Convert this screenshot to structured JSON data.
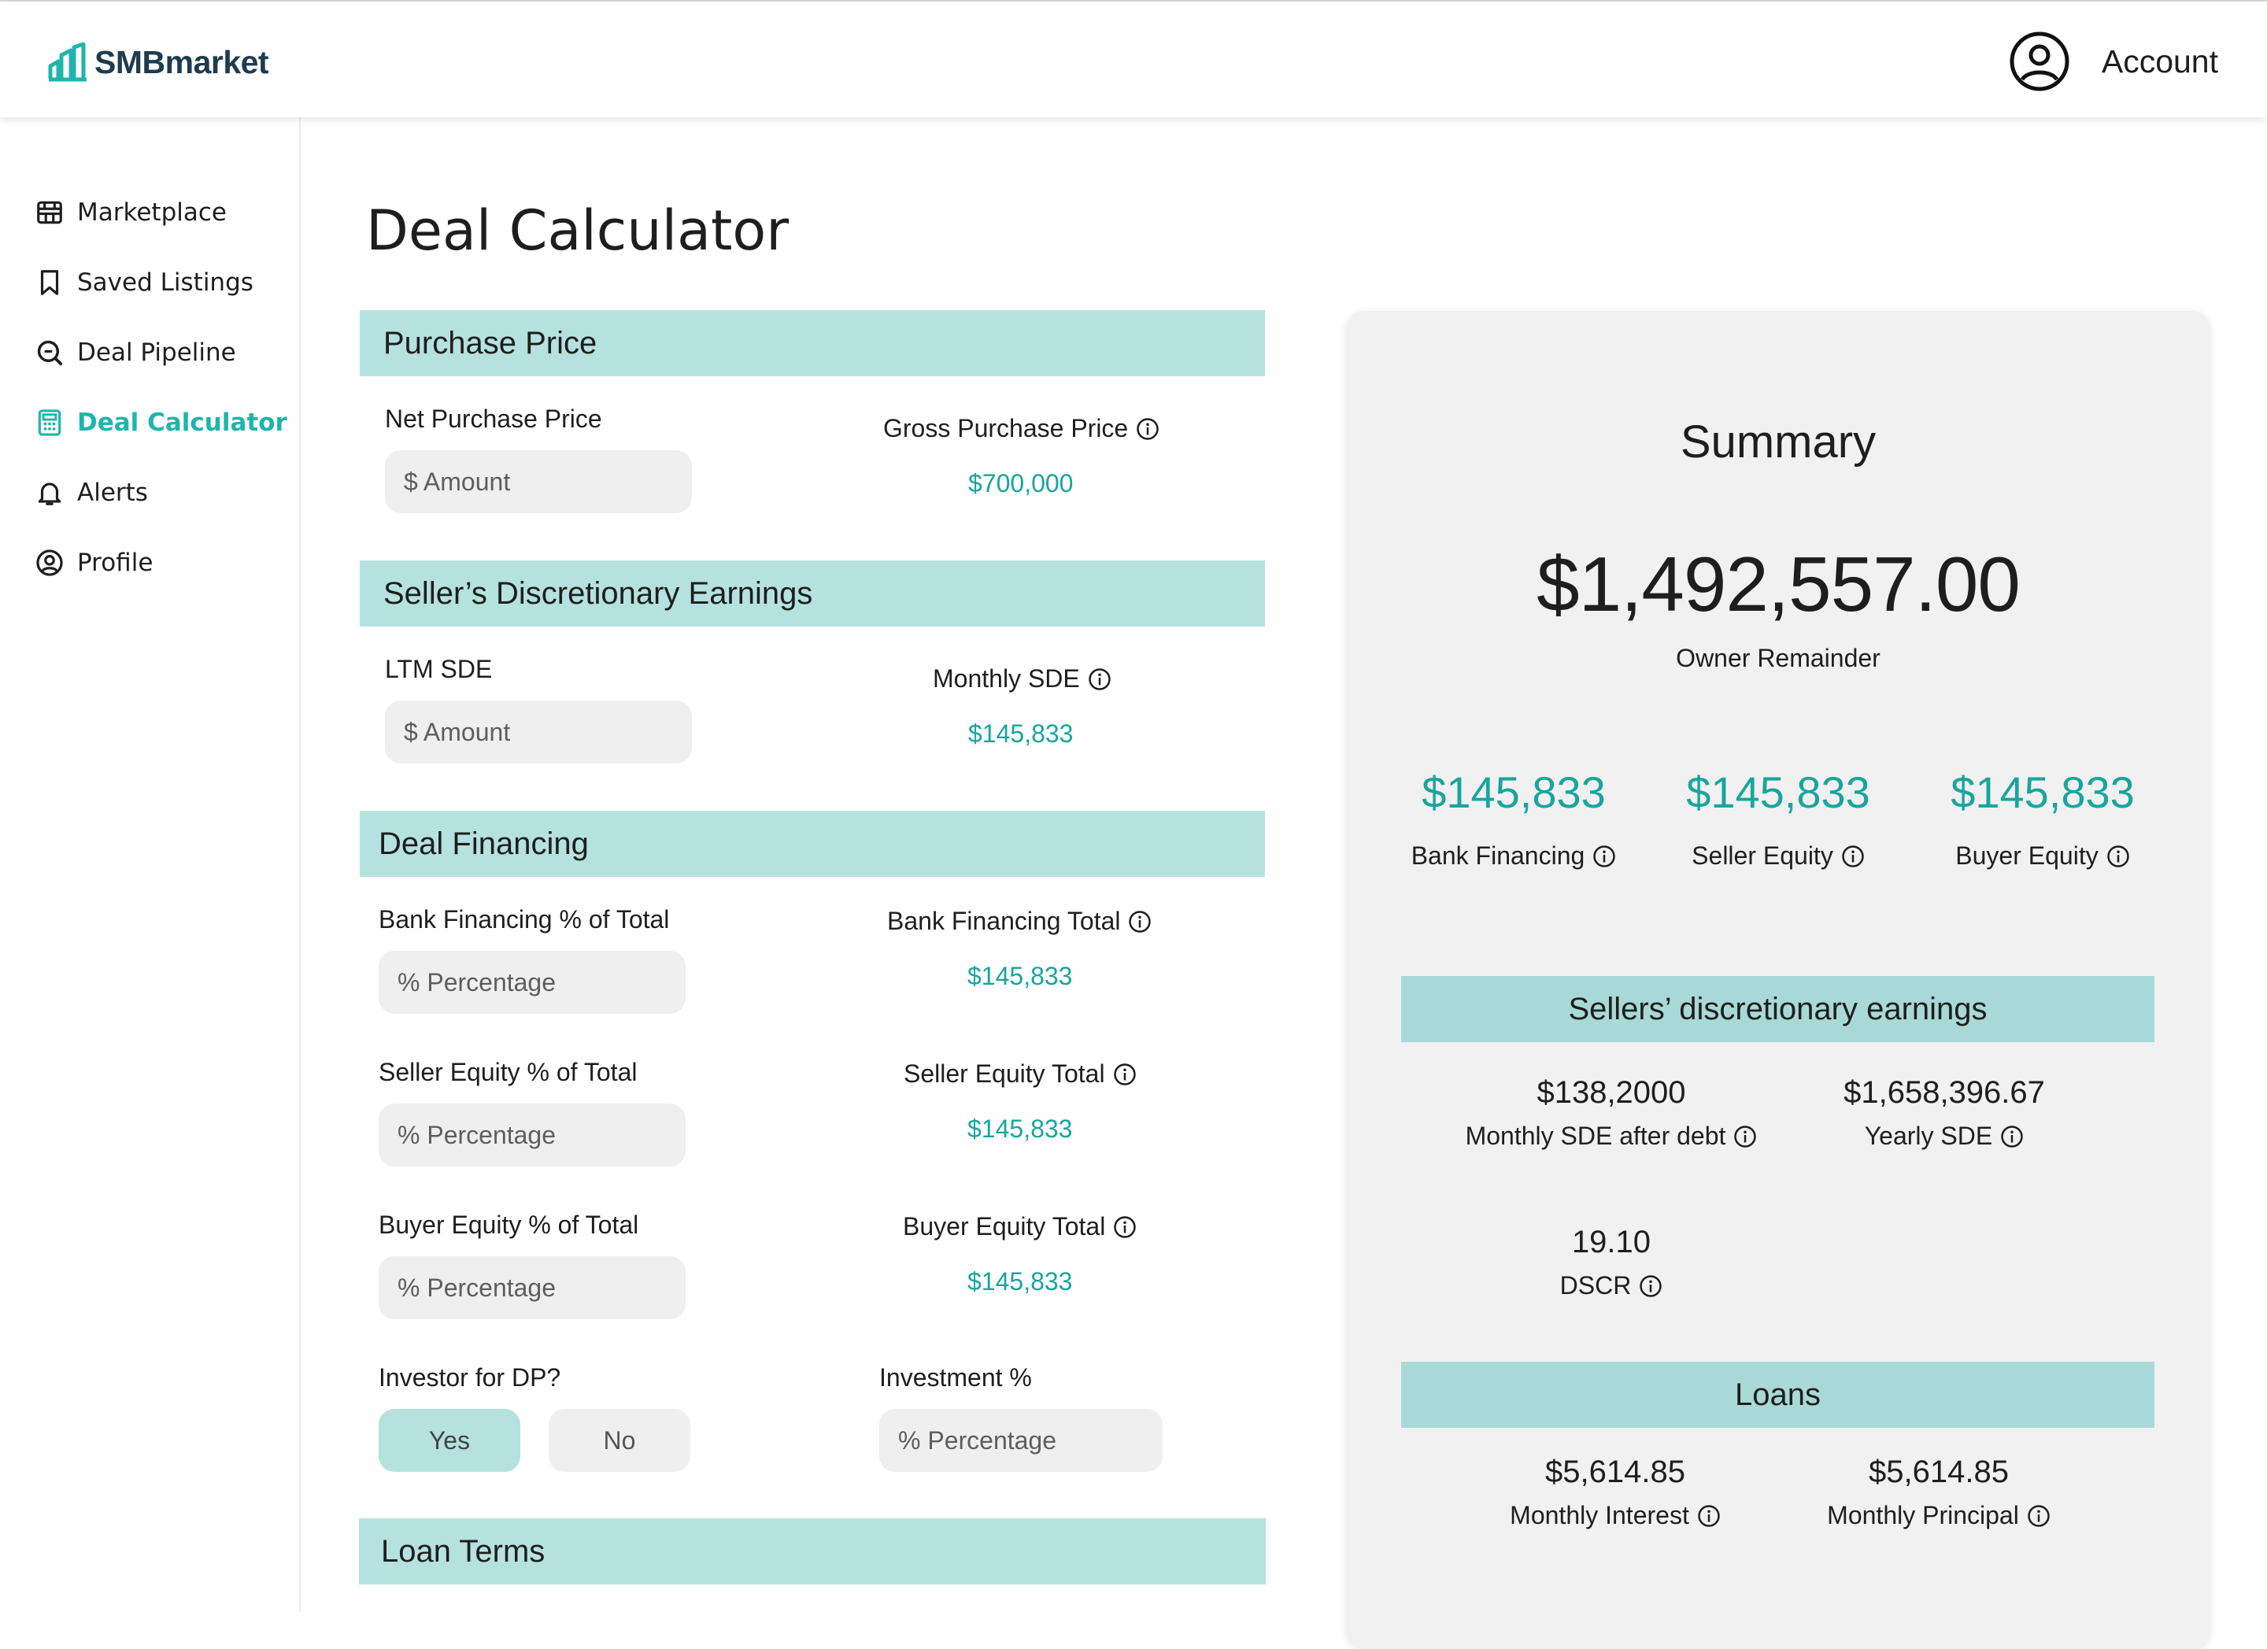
{
  "brand": {
    "name": "SMBmarket",
    "accent": "#1fb5ad",
    "section_bg": "#b5e2df",
    "value_color": "#18a59d"
  },
  "header": {
    "account_label": "Account"
  },
  "sidebar": {
    "items": [
      {
        "label": "Marketplace",
        "icon": "storefront-icon",
        "active": false
      },
      {
        "label": "Saved Listings",
        "icon": "bookmark-icon",
        "active": false
      },
      {
        "label": "Deal Pipeline",
        "icon": "search-icon",
        "active": false
      },
      {
        "label": "Deal Calculator",
        "icon": "calculator-icon",
        "active": true
      },
      {
        "label": "Alerts",
        "icon": "bell-icon",
        "active": false
      },
      {
        "label": "Profile",
        "icon": "user-circle-icon",
        "active": false
      }
    ]
  },
  "page": {
    "title": "Deal Calculator"
  },
  "purchase_price": {
    "title": "Purchase Price",
    "net_label": "Net Purchase Price",
    "net_placeholder": "$ Amount",
    "gross_label": "Gross Purchase Price",
    "gross_value": "$700,000"
  },
  "sde": {
    "title": "Seller’s Discretionary Earnings",
    "ltm_label": "LTM SDE",
    "ltm_placeholder": "$ Amount",
    "monthly_label": "Monthly SDE",
    "monthly_value": "$145,833"
  },
  "financing": {
    "title": "Deal Financing",
    "bank_pct_label": "Bank Financing % of Total",
    "bank_pct_placeholder": "% Percentage",
    "bank_total_label": "Bank Financing Total",
    "bank_total_value": "$145,833",
    "seller_pct_label": "Seller Equity  % of Total",
    "seller_pct_placeholder": "% Percentage",
    "seller_total_label": "Seller Equity Total",
    "seller_total_value": "$145,833",
    "buyer_pct_label": "Buyer Equity  % of Total",
    "buyer_pct_placeholder": "% Percentage",
    "buyer_total_label": "Buyer Equity Total",
    "buyer_total_value": "$145,833",
    "investor_label": "Investor for DP?",
    "yes_label": "Yes",
    "no_label": "No",
    "investor_selected": "Yes",
    "investment_label": "Investment %",
    "investment_placeholder": "% Percentage"
  },
  "loan_terms": {
    "title": "Loan Terms"
  },
  "summary": {
    "title": "Summary",
    "owner_remainder_value": "$1,492,557.00",
    "owner_remainder_label": "Owner Remainder",
    "bank_financing_value": "$145,833",
    "bank_financing_label": "Bank Financing",
    "seller_equity_value": "$145,833",
    "seller_equity_label": "Seller Equity",
    "buyer_equity_value": "$145,833",
    "buyer_equity_label": "Buyer Equity",
    "sde_section_title": "Sellers’ discretionary earnings",
    "monthly_sde_after_debt_value": "$138,2000",
    "monthly_sde_after_debt_label": "Monthly SDE after debt",
    "yearly_sde_value": "$1,658,396.67",
    "yearly_sde_label": "Yearly SDE",
    "dscr_value": "19.10",
    "dscr_label": "DSCR",
    "loans_section_title": "Loans",
    "monthly_interest_value": "$5,614.85",
    "monthly_interest_label": "Monthly Interest",
    "monthly_principal_value": "$5,614.85",
    "monthly_principal_label": "Monthly Principal"
  }
}
